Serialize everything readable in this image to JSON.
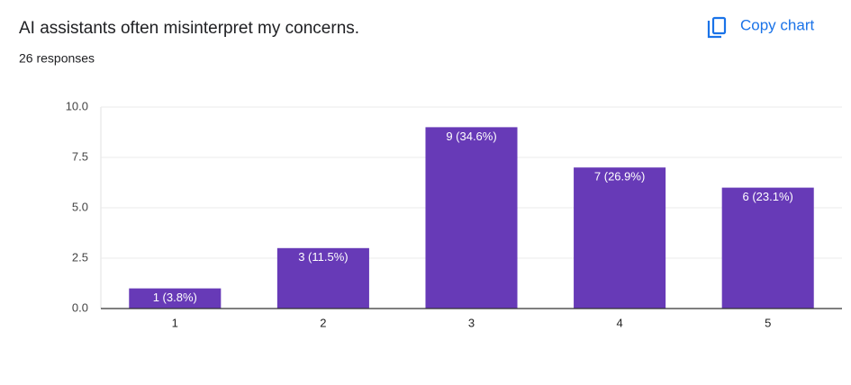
{
  "header": {
    "copy_button": "Copy chart"
  },
  "chart_data": {
    "type": "bar",
    "title": "AI assistants often misinterpret my concerns.",
    "subtitle": "26 responses",
    "categories": [
      "1",
      "2",
      "3",
      "4",
      "5"
    ],
    "values": [
      1,
      3,
      9,
      7,
      6
    ],
    "value_labels": [
      "1 (3.8%)",
      "3 (11.5%)",
      "9 (34.6%)",
      "7 (26.9%)",
      "6 (23.1%)"
    ],
    "color": "#673ab7",
    "ylim": [
      0,
      10
    ],
    "yticks": [
      {
        "value": 0,
        "label": "0.0"
      },
      2.5,
      {
        "value": 5,
        "label": "5.0"
      },
      7.5,
      {
        "value": 10,
        "label": "10.0"
      }
    ],
    "grid": true
  }
}
